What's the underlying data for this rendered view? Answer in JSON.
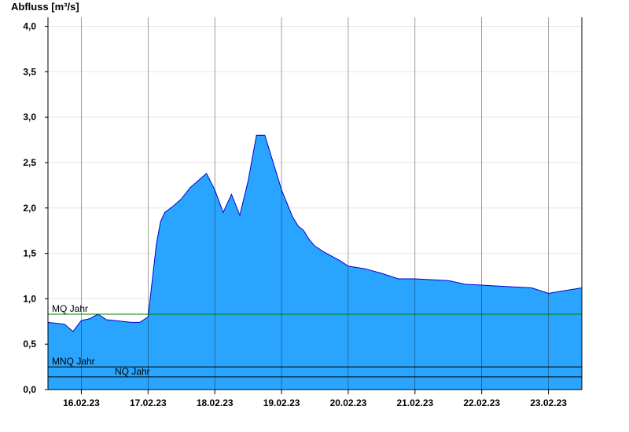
{
  "chart_data": {
    "type": "area",
    "title": "Abfluss [m³/s]",
    "xlabel": "",
    "ylabel": "Abfluss [m³/s]",
    "ylim": [
      0,
      4.1
    ],
    "y_ticks": [
      {
        "value": 0.0,
        "label": "0,0"
      },
      {
        "value": 0.5,
        "label": "0,5"
      },
      {
        "value": 1.0,
        "label": "1,0"
      },
      {
        "value": 1.5,
        "label": "1,5"
      },
      {
        "value": 2.0,
        "label": "2,0"
      },
      {
        "value": 2.5,
        "label": "2,5"
      },
      {
        "value": 3.0,
        "label": "3,0"
      },
      {
        "value": 3.5,
        "label": "3,5"
      },
      {
        "value": 4.0,
        "label": "4,0"
      }
    ],
    "x_range_days": [
      15.5,
      23.5
    ],
    "x_day_labels": [
      "16.02.23",
      "17.02.23",
      "18.02.23",
      "19.02.23",
      "20.02.23",
      "21.02.23",
      "22.02.23",
      "23.02.23"
    ],
    "grid": true,
    "fill_color": "#29a5ff",
    "line_color": "#0000cc",
    "series": [
      {
        "x_dates": [
          "2023-02-15 12:00",
          "2023-02-15 15:00",
          "2023-02-15 18:00",
          "2023-02-15 21:00",
          "2023-02-16 00:00",
          "2023-02-16 03:00",
          "2023-02-16 06:00",
          "2023-02-16 09:00",
          "2023-02-16 12:00",
          "2023-02-16 15:00",
          "2023-02-16 18:00",
          "2023-02-16 21:00",
          "2023-02-17 00:00",
          "2023-02-17 01:30",
          "2023-02-17 03:00",
          "2023-02-17 04:30",
          "2023-02-17 06:00",
          "2023-02-17 09:00",
          "2023-02-17 12:00",
          "2023-02-17 15:00",
          "2023-02-17 18:00",
          "2023-02-17 21:00",
          "2023-02-18 00:00",
          "2023-02-18 03:00",
          "2023-02-18 06:00",
          "2023-02-18 09:00",
          "2023-02-18 12:00",
          "2023-02-18 15:00",
          "2023-02-18 18:00",
          "2023-02-18 21:00",
          "2023-02-19 00:00",
          "2023-02-19 02:00",
          "2023-02-19 04:00",
          "2023-02-19 06:00",
          "2023-02-19 08:00",
          "2023-02-19 10:00",
          "2023-02-19 12:00",
          "2023-02-19 15:00",
          "2023-02-19 18:00",
          "2023-02-19 21:00",
          "2023-02-20 00:00",
          "2023-02-20 06:00",
          "2023-02-20 12:00",
          "2023-02-20 18:00",
          "2023-02-21 00:00",
          "2023-02-21 06:00",
          "2023-02-21 12:00",
          "2023-02-21 18:00",
          "2023-02-22 00:00",
          "2023-02-22 06:00",
          "2023-02-22 12:00",
          "2023-02-22 18:00",
          "2023-02-23 00:00",
          "2023-02-23 04:00",
          "2023-02-23 08:00",
          "2023-02-23 12:00"
        ],
        "x_days": [
          15.5,
          15.625,
          15.75,
          15.875,
          16.0,
          16.125,
          16.25,
          16.375,
          16.5,
          16.625,
          16.75,
          16.875,
          17.0,
          17.0625,
          17.125,
          17.1875,
          17.25,
          17.375,
          17.5,
          17.625,
          17.75,
          17.875,
          18.0,
          18.125,
          18.25,
          18.375,
          18.5,
          18.625,
          18.75,
          18.875,
          19.0,
          19.0833,
          19.1667,
          19.25,
          19.3333,
          19.4167,
          19.5,
          19.625,
          19.75,
          19.875,
          20.0,
          20.25,
          20.5,
          20.75,
          21.0,
          21.25,
          21.5,
          21.75,
          22.0,
          22.25,
          22.5,
          22.75,
          23.0,
          23.1667,
          23.3333,
          23.5
        ],
        "values": [
          0.74,
          0.73,
          0.72,
          0.64,
          0.76,
          0.78,
          0.83,
          0.77,
          0.76,
          0.75,
          0.74,
          0.74,
          0.8,
          1.2,
          1.6,
          1.85,
          1.95,
          2.02,
          2.1,
          2.22,
          2.3,
          2.38,
          2.2,
          1.95,
          2.15,
          1.92,
          2.3,
          2.8,
          2.8,
          2.5,
          2.2,
          2.05,
          1.9,
          1.8,
          1.75,
          1.65,
          1.58,
          1.52,
          1.47,
          1.42,
          1.36,
          1.33,
          1.28,
          1.22,
          1.22,
          1.21,
          1.2,
          1.16,
          1.15,
          1.14,
          1.13,
          1.12,
          1.06,
          1.08,
          1.1,
          1.12
        ]
      }
    ],
    "reference_lines": [
      {
        "label": "MQ Jahr",
        "value": 0.83,
        "color": "#008000"
      },
      {
        "label": "MNQ Jahr",
        "value": 0.25,
        "color": "#000000"
      },
      {
        "label": "NQ Jahr",
        "value": 0.14,
        "color": "#000000"
      }
    ]
  }
}
